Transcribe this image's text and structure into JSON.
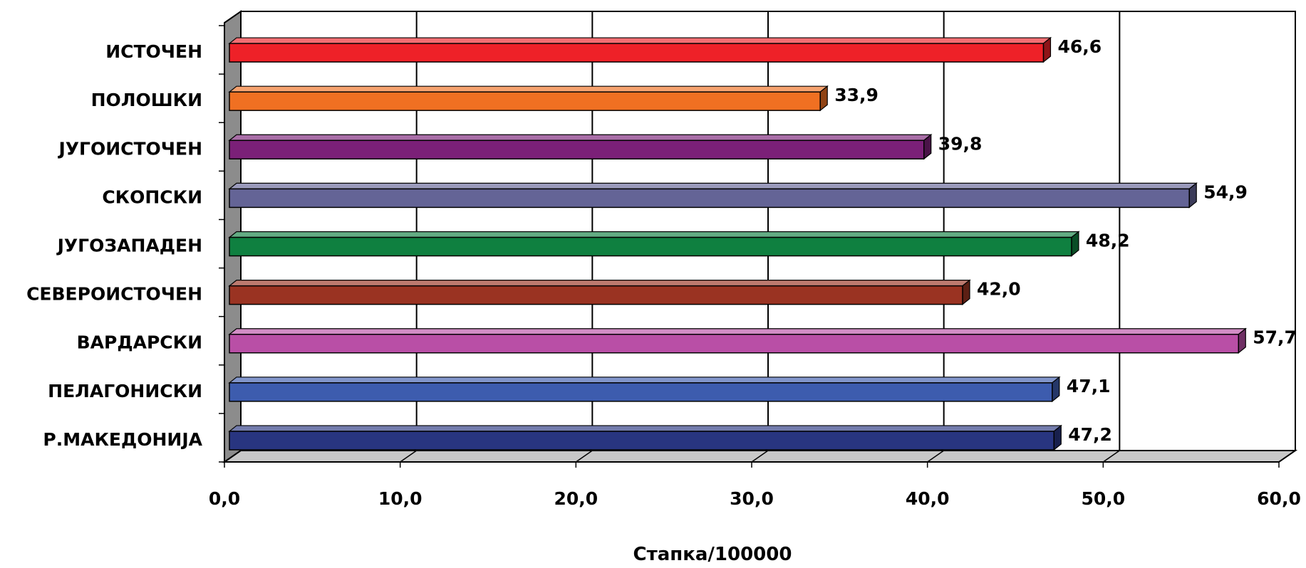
{
  "chart_data": {
    "type": "bar",
    "orientation": "horizontal",
    "categories": [
      "ИСТОЧЕН",
      "ПОЛОШКИ",
      "ЈУГОИСТОЧЕН",
      "СКОПСКИ",
      "ЈУГОЗАПАДЕН",
      "СЕВЕРОИСТОЧЕН",
      "ВАРДАРСКИ",
      "ПЕЛАГОНИСКИ",
      "Р.МАКЕДОНИЈА"
    ],
    "values": [
      46.6,
      33.9,
      39.8,
      54.9,
      48.2,
      42.0,
      57.7,
      47.1,
      47.2
    ],
    "value_labels": [
      "46,6",
      "33,9",
      "39,8",
      "54,9",
      "48,2",
      "42,0",
      "57,7",
      "47,1",
      "47,2"
    ],
    "colors": [
      "#ee2128",
      "#f07022",
      "#7b2078",
      "#646496",
      "#0f8040",
      "#9a3322",
      "#b94fa6",
      "#3d5cae",
      "#283580"
    ],
    "xlim": [
      0,
      60
    ],
    "x_ticks": [
      0,
      10,
      20,
      30,
      40,
      50,
      60
    ],
    "x_tick_labels": [
      "0,0",
      "10,0",
      "20,0",
      "30,0",
      "40,0",
      "50,0",
      "60,0"
    ],
    "xlabel": "Стапка/100000",
    "ylabel": "",
    "title": "",
    "grid": true,
    "style": "3d-bars"
  }
}
